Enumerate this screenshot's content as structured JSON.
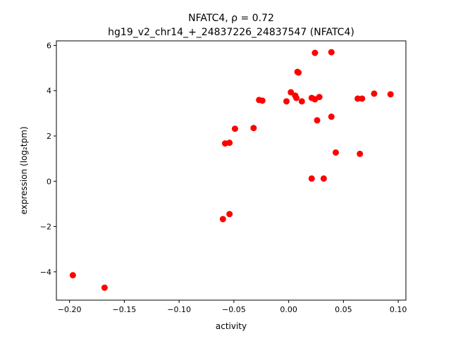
{
  "chart_data": {
    "type": "scatter",
    "title_line1": "NFATC4, ρ = 0.72",
    "title_line2": "hg19_v2_chr14_+_24837226_24837547 (NFATC4)",
    "xlabel": "activity",
    "ylabel": "expression (log₂tpm)",
    "xlim": [
      -0.212,
      0.107
    ],
    "ylim": [
      -5.25,
      6.2
    ],
    "xticks": [
      -0.2,
      -0.15,
      -0.1,
      -0.05,
      0.0,
      0.05,
      0.1
    ],
    "xtick_labels": [
      "−0.20",
      "−0.15",
      "−0.10",
      "−0.05",
      "0.00",
      "0.05",
      "0.10"
    ],
    "yticks": [
      -4,
      -2,
      0,
      2,
      4,
      6
    ],
    "ytick_labels": [
      "−4",
      "−2",
      "0",
      "2",
      "4",
      "6"
    ],
    "marker_color": "#ff0000",
    "grid": false,
    "points": [
      [
        -0.197,
        -4.15
      ],
      [
        -0.168,
        -4.7
      ],
      [
        -0.06,
        -1.67
      ],
      [
        -0.054,
        -1.45
      ],
      [
        -0.058,
        1.67
      ],
      [
        -0.054,
        1.7
      ],
      [
        -0.049,
        2.32
      ],
      [
        -0.032,
        2.35
      ],
      [
        -0.027,
        3.59
      ],
      [
        -0.024,
        3.56
      ],
      [
        -0.002,
        3.53
      ],
      [
        0.002,
        3.93
      ],
      [
        0.006,
        3.78
      ],
      [
        0.007,
        3.68
      ],
      [
        0.008,
        4.83
      ],
      [
        0.009,
        4.8
      ],
      [
        0.012,
        3.53
      ],
      [
        0.021,
        3.68
      ],
      [
        0.024,
        5.67
      ],
      [
        0.024,
        3.62
      ],
      [
        0.026,
        2.69
      ],
      [
        0.028,
        3.72
      ],
      [
        0.021,
        0.12
      ],
      [
        0.032,
        0.12
      ],
      [
        0.039,
        5.7
      ],
      [
        0.039,
        2.85
      ],
      [
        0.043,
        1.27
      ],
      [
        0.063,
        3.65
      ],
      [
        0.067,
        3.65
      ],
      [
        0.065,
        1.21
      ],
      [
        0.078,
        3.87
      ],
      [
        0.093,
        3.84
      ]
    ]
  }
}
